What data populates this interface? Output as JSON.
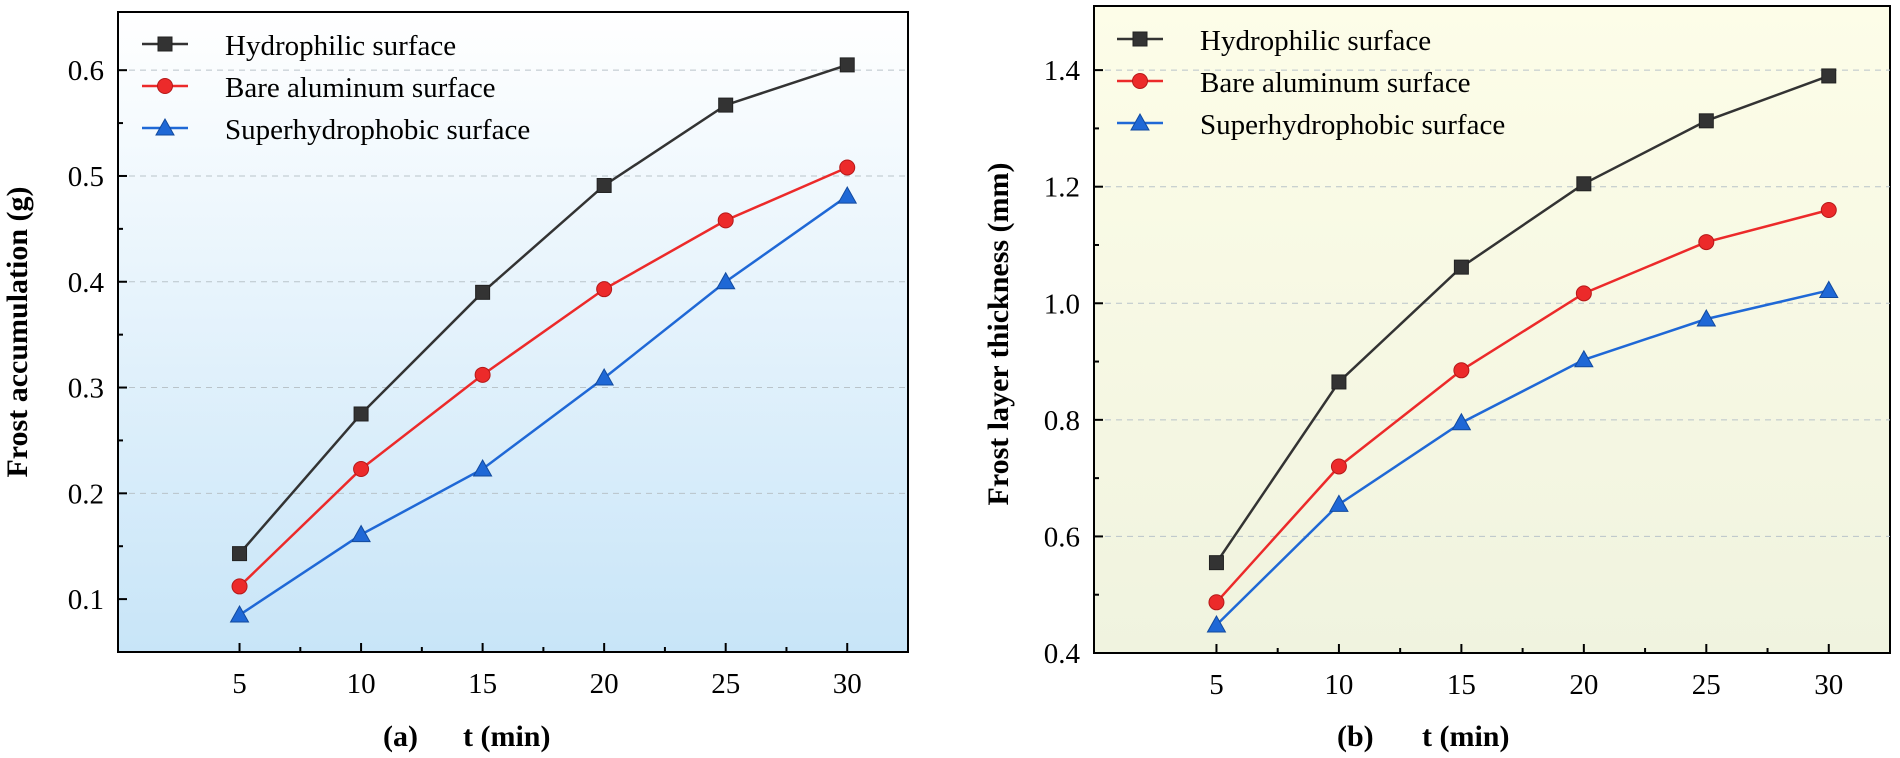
{
  "chart_data": [
    {
      "type": "line",
      "panel_label": "(a)",
      "xlabel": "t (min)",
      "ylabel": "Frost accumulation (g)",
      "x": [
        5,
        10,
        15,
        20,
        25,
        30
      ],
      "xticks": [
        "5",
        "10",
        "15",
        "20",
        "25",
        "30"
      ],
      "yticks": [
        "0.1",
        "0.2",
        "0.3",
        "0.4",
        "0.5",
        "0.6"
      ],
      "xlim": [
        0,
        32.5
      ],
      "ylim": [
        0.05,
        0.655
      ],
      "grid": true,
      "legend_position": "top-left",
      "series": [
        {
          "name": "Hydrophilic surface",
          "marker": "square",
          "color": "#333333",
          "values": [
            0.143,
            0.275,
            0.39,
            0.491,
            0.567,
            0.605
          ]
        },
        {
          "name": "Bare aluminum surface",
          "marker": "circle",
          "color": "#ec2a2a",
          "values": [
            0.112,
            0.223,
            0.312,
            0.393,
            0.458,
            0.508
          ]
        },
        {
          "name": "Superhydrophobic surface",
          "marker": "triangle",
          "color": "#1f68d6",
          "values": [
            0.085,
            0.161,
            0.223,
            0.309,
            0.4,
            0.481
          ]
        }
      ],
      "background": {
        "gradient_top": "#ffffff",
        "gradient_bottom": "#c8e5f8"
      }
    },
    {
      "type": "line",
      "panel_label": "(b)",
      "xlabel": "t (min)",
      "ylabel": "Frost layer thickness (mm)",
      "x": [
        5,
        10,
        15,
        20,
        25,
        30
      ],
      "xticks": [
        "5",
        "10",
        "15",
        "20",
        "25",
        "30"
      ],
      "yticks": [
        "0.4",
        "0.6",
        "0.8",
        "1.0",
        "1.2",
        "1.4"
      ],
      "xlim": [
        0,
        32.5
      ],
      "ylim": [
        0.4,
        1.51
      ],
      "grid": true,
      "legend_position": "top-left",
      "series": [
        {
          "name": "Hydrophilic surface",
          "marker": "square",
          "color": "#333333",
          "values": [
            0.555,
            0.865,
            1.062,
            1.205,
            1.313,
            1.39
          ]
        },
        {
          "name": "Bare aluminum surface",
          "marker": "circle",
          "color": "#ec2a2a",
          "values": [
            0.487,
            0.72,
            0.885,
            1.017,
            1.105,
            1.16
          ]
        },
        {
          "name": "Superhydrophobic surface",
          "marker": "triangle",
          "color": "#1f68d6",
          "values": [
            0.448,
            0.655,
            0.795,
            0.903,
            0.973,
            1.022
          ]
        }
      ],
      "background": {
        "gradient_top": "#fdfde8",
        "gradient_bottom": "#f0f3df"
      }
    }
  ]
}
